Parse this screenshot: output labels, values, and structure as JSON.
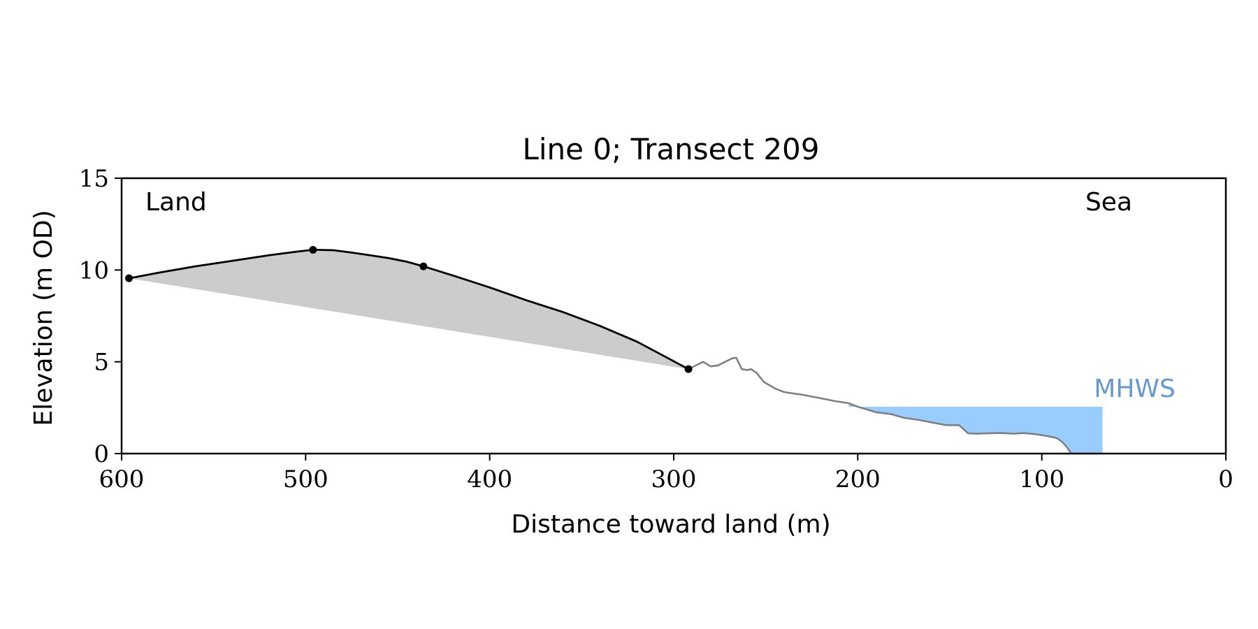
{
  "chart_data": {
    "type": "area",
    "title": "Line 0; Transect 209",
    "xlabel": "Distance toward land (m)",
    "ylabel": "Elevation (m OD)",
    "xlim": [
      600,
      0
    ],
    "ylim": [
      0,
      15
    ],
    "x_ticks": [
      600,
      500,
      400,
      300,
      200,
      100,
      0
    ],
    "y_ticks": [
      0,
      5,
      10,
      15
    ],
    "grid": false,
    "annotations": {
      "land": "Land",
      "sea": "Sea",
      "mhws": "MHWS"
    },
    "mhws_level": 2.55,
    "mhws_x_range": [
      205,
      67
    ],
    "colors": {
      "dune": "#000000",
      "dune_fill": "#cccccc",
      "profile": "#808080",
      "water": "#99ccff",
      "mhws_text": "#6699cc"
    },
    "dune_points": [
      [
        596,
        9.55
      ],
      [
        496,
        11.1
      ],
      [
        436,
        10.2
      ],
      [
        292,
        4.6
      ]
    ],
    "dune_profile": [
      [
        596,
        9.55
      ],
      [
        580,
        9.85
      ],
      [
        560,
        10.2
      ],
      [
        540,
        10.5
      ],
      [
        520,
        10.8
      ],
      [
        505,
        11.0
      ],
      [
        496,
        11.1
      ],
      [
        485,
        11.08
      ],
      [
        475,
        10.95
      ],
      [
        465,
        10.8
      ],
      [
        455,
        10.65
      ],
      [
        445,
        10.45
      ],
      [
        436,
        10.2
      ],
      [
        420,
        9.7
      ],
      [
        400,
        9.05
      ],
      [
        380,
        8.35
      ],
      [
        360,
        7.7
      ],
      [
        340,
        6.95
      ],
      [
        320,
        6.1
      ],
      [
        305,
        5.3
      ],
      [
        292,
        4.6
      ]
    ],
    "seaward_profile": [
      [
        292,
        4.6
      ],
      [
        287,
        4.85
      ],
      [
        284,
        5.0
      ],
      [
        280,
        4.75
      ],
      [
        276,
        4.8
      ],
      [
        272,
        5.0
      ],
      [
        268,
        5.2
      ],
      [
        266,
        5.22
      ],
      [
        263,
        4.6
      ],
      [
        260,
        4.55
      ],
      [
        258,
        4.6
      ],
      [
        255,
        4.4
      ],
      [
        251,
        3.9
      ],
      [
        245,
        3.55
      ],
      [
        240,
        3.35
      ],
      [
        230,
        3.2
      ],
      [
        222,
        3.05
      ],
      [
        212,
        2.85
      ],
      [
        205,
        2.75
      ],
      [
        200,
        2.55
      ],
      [
        190,
        2.25
      ],
      [
        182,
        2.15
      ],
      [
        175,
        1.95
      ],
      [
        168,
        1.85
      ],
      [
        160,
        1.7
      ],
      [
        152,
        1.55
      ],
      [
        145,
        1.55
      ],
      [
        140,
        1.1
      ],
      [
        135,
        1.08
      ],
      [
        130,
        1.1
      ],
      [
        122,
        1.12
      ],
      [
        115,
        1.08
      ],
      [
        110,
        1.12
      ],
      [
        103,
        1.05
      ],
      [
        97,
        0.95
      ],
      [
        92,
        0.85
      ],
      [
        89,
        0.65
      ],
      [
        86,
        0.3
      ],
      [
        84,
        0.0
      ]
    ]
  }
}
